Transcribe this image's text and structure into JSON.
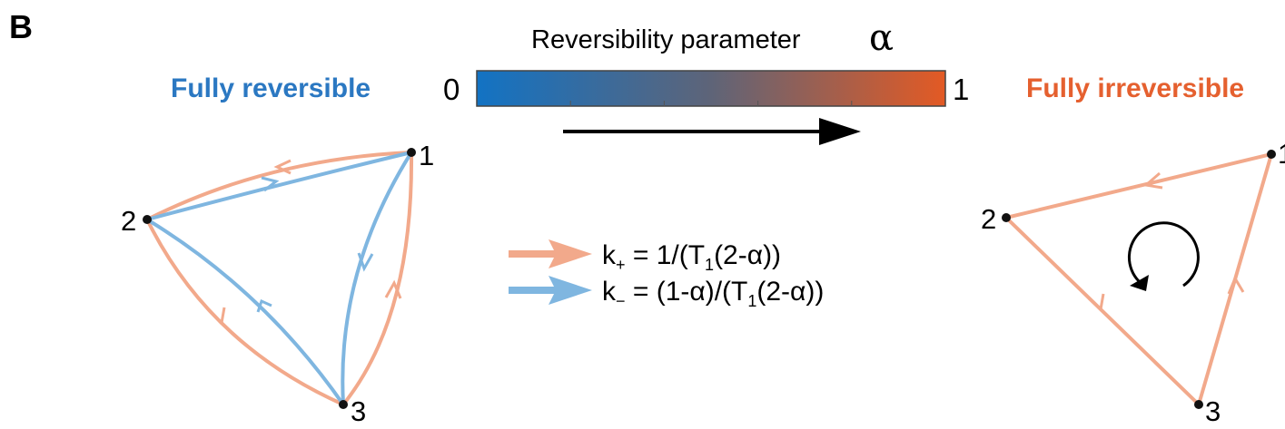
{
  "panel_label": "B",
  "colorbar": {
    "title": "Reversibility parameter",
    "symbol": "α",
    "min_label": "0",
    "max_label": "1",
    "color_start": "#1273c4",
    "color_mid": "#5e6478",
    "color_end": "#e35a24"
  },
  "regimes": {
    "left": {
      "label": "Fully reversible",
      "color": "#2b78c2"
    },
    "right": {
      "label": "Fully irreversible",
      "color": "#e5602f"
    }
  },
  "nodes": [
    "1",
    "2",
    "3"
  ],
  "legend": {
    "forward": {
      "color": "#f2a98b",
      "k": "k",
      "sub": "+",
      "eq_before": " = 1/(T",
      "eq_sub": "1",
      "eq_after": "(2-α))"
    },
    "backward": {
      "color": "#7fb6e0",
      "k": "k",
      "sub": "−",
      "eq_before": " = (1-α)/(T",
      "eq_sub": "1",
      "eq_after": "(2-α))"
    }
  },
  "colors": {
    "forward_edge": "#f2a98b",
    "backward_edge": "#7fb6e0",
    "node": "#111111",
    "arrow": "#000000"
  },
  "icons": [
    "arrow-right-icon",
    "rotation-arrow-icon"
  ]
}
